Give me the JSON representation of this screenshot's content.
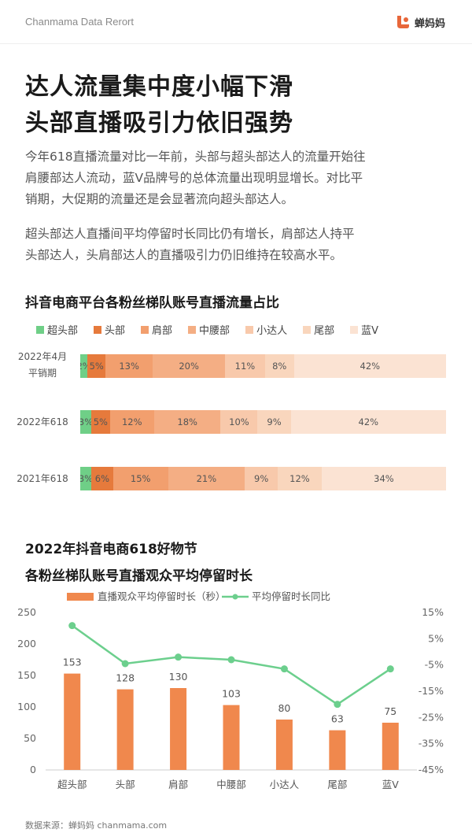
{
  "header": {
    "report_title": "Chanmama Data Rerort",
    "logo_text": "蝉妈妈",
    "logo_icon": "chanmama-logo-icon"
  },
  "headline": {
    "line1": "达人流量集中度小幅下滑",
    "line2": "头部直播吸引力依旧强势"
  },
  "paragraphs": {
    "p1_l1": "今年618直播流量对比一年前，头部与超头部达人的流量开始往",
    "p1_l2": "肩腰部达人流动，蓝V品牌号的总体流量出现明显增长。对比平",
    "p1_l3": "销期，大促期的流量还是会显著流向超头部达人。",
    "p2_l1": "超头部达人直播间平均停留时长同比仍有增长，肩部达人持平",
    "p2_l2": "头部达人，头肩部达人的直播吸引力仍旧维持在较高水平。"
  },
  "colors": {
    "accent": "#e8673a",
    "legend_swatches": [
      "#6fcf87",
      "#e67a3c",
      "#f29f6e",
      "#f4ae84",
      "#f8c9ab",
      "#f9d6bd",
      "#fbe3d3"
    ],
    "bar_orange": "#f0884d",
    "line_green": "#6ccf8d"
  },
  "chart_data": [
    {
      "type": "bar",
      "stacked": true,
      "orientation": "horizontal",
      "percent": true,
      "title": "抖音电商平台各粉丝梯队账号直播流量占比",
      "legend_position": "top",
      "legend": [
        "超头部",
        "头部",
        "肩部",
        "中腰部",
        "小达人",
        "尾部",
        "蓝V"
      ],
      "rows": [
        {
          "label_l1": "2022年4月",
          "label_l2": "平销期",
          "values": [
            2,
            5,
            13,
            20,
            11,
            8,
            42
          ],
          "labels": [
            "2%",
            "5%",
            "13%",
            "20%",
            "11%",
            "8%",
            "42%"
          ]
        },
        {
          "label_l1": "2022年618",
          "label_l2": "",
          "values": [
            3,
            5,
            12,
            18,
            10,
            9,
            42
          ],
          "labels": [
            "3%",
            "5%",
            "12%",
            "18%",
            "10%",
            "9%",
            "42%"
          ]
        },
        {
          "label_l1": "2021年618",
          "label_l2": "",
          "values": [
            3,
            6,
            15,
            21,
            9,
            12,
            34
          ],
          "labels": [
            "3%",
            "6%",
            "15%",
            "21%",
            "9%",
            "12%",
            "34%"
          ]
        }
      ]
    },
    {
      "type": "bar",
      "combo": "bar+line",
      "title_l1": "2022年抖音电商618好物节",
      "title_l2": "各粉丝梯队账号直播观众平均停留时长",
      "categories": [
        "超头部",
        "头部",
        "肩部",
        "中腰部",
        "小达人",
        "尾部",
        "蓝V"
      ],
      "series": [
        {
          "name": "直播观众平均停留时长（秒）",
          "type": "bar",
          "values": [
            153,
            128,
            130,
            103,
            80,
            63,
            75
          ]
        },
        {
          "name": "平均停留时长同比",
          "type": "line",
          "values": [
            10,
            -4.5,
            -2,
            -3,
            -6.5,
            -20,
            -6.5
          ]
        }
      ],
      "ylim": [
        0,
        250
      ],
      "yticks": [
        "250",
        "200",
        "150",
        "100",
        "50",
        "0"
      ],
      "y2lim": [
        -45,
        15
      ],
      "y2ticks": [
        "15%",
        "5%",
        "-5%",
        "-15%",
        "-25%",
        "-35%",
        "-45%"
      ],
      "legend_position": "top",
      "grid": false
    }
  ],
  "footer": {
    "source": "数据来源：蝉妈妈 chanmama.com"
  }
}
